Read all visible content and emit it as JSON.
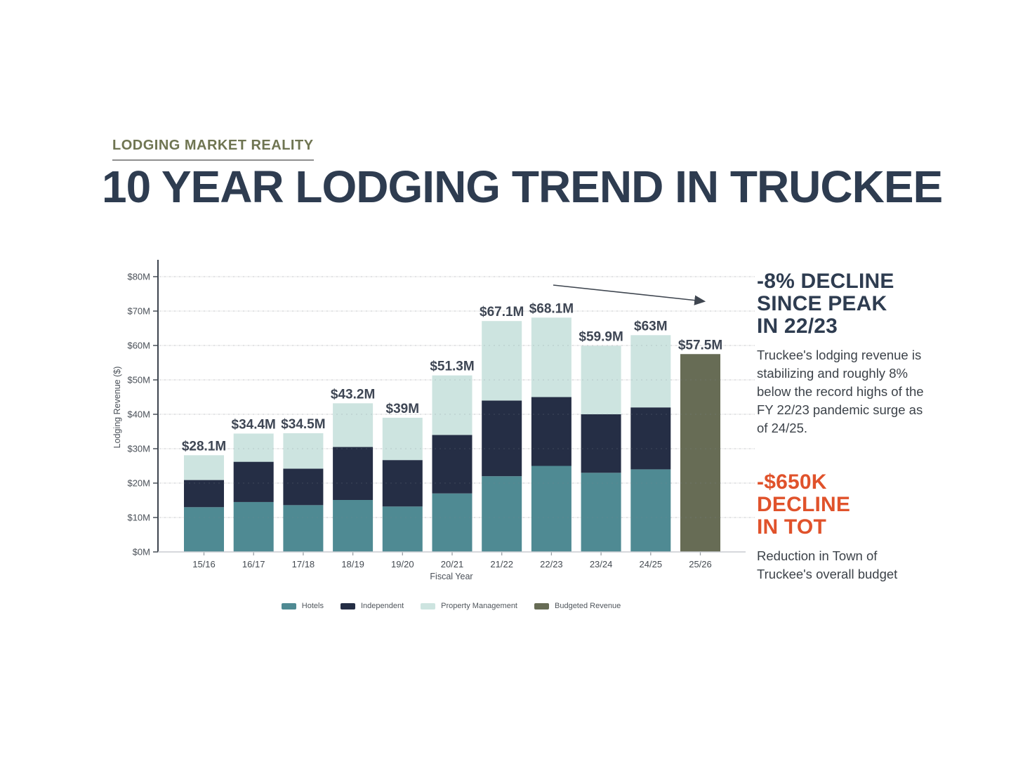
{
  "page": {
    "background": "#ffffff"
  },
  "kicker": {
    "label": "LODGING MARKET REALITY",
    "color": "#6F7552"
  },
  "title": {
    "text": "10 YEAR LODGING TREND IN TRUCKEE",
    "color": "#2E3C50"
  },
  "chart_data": {
    "type": "bar",
    "stacked": true,
    "title": "",
    "xlabel": "Fiscal Year",
    "ylabel": "Lodging Revenue ($)",
    "ylim": [
      0,
      80
    ],
    "grid": "faint horizontal lines every $10M, dashed overlay visible across bars",
    "legend_position": "bottom",
    "categories": [
      "15/16",
      "16/17",
      "17/18",
      "18/19",
      "19/20",
      "20/21",
      "21/22",
      "22/23",
      "23/24",
      "24/25",
      "25/26"
    ],
    "series": [
      {
        "name": "Hotels",
        "color": "#4F8A93",
        "values": [
          13.0,
          14.5,
          13.6,
          15.1,
          13.2,
          17.0,
          22.0,
          25.0,
          23.0,
          24.0,
          0
        ]
      },
      {
        "name": "Independent",
        "color": "#252E45",
        "values": [
          7.9,
          11.7,
          10.6,
          15.4,
          13.5,
          17.0,
          22.0,
          20.0,
          17.0,
          18.0,
          0
        ]
      },
      {
        "name": "Property Management",
        "color": "#CDE4E0",
        "values": [
          7.2,
          8.2,
          10.3,
          12.7,
          12.3,
          17.3,
          23.1,
          23.1,
          19.9,
          21.0,
          0
        ]
      },
      {
        "name": "Budgeted Revenue",
        "color": "#676C55",
        "values": [
          0,
          0,
          0,
          0,
          0,
          0,
          0,
          0,
          0,
          0,
          57.5
        ]
      }
    ],
    "totals": [
      28.1,
      34.4,
      34.5,
      43.2,
      39.0,
      51.3,
      67.1,
      68.1,
      59.9,
      63.0,
      57.5
    ],
    "total_labels": [
      "$28.1M",
      "$34.4M",
      "$34.5M",
      "$43.2M",
      "$39M",
      "$51.3M",
      "$67.1M",
      "$68.1M",
      "$59.9M",
      "$63M",
      "$57.5M"
    ],
    "ytick_values": [
      0,
      10,
      20,
      30,
      40,
      50,
      60,
      70,
      80
    ],
    "ytick_labels": [
      "$0M",
      "$10M",
      "$20M",
      "$30M",
      "$40M",
      "$50M",
      "$60M",
      "$70M",
      "$80M"
    ],
    "annotations": {
      "trend_arrow": {
        "description": "downward arrow above bars from 22/23 peak toward 25/26"
      }
    }
  },
  "right_panel": {
    "block1": {
      "heading": "-8% DECLINE\nSINCE PEAK\nIN 22/23",
      "heading_color": "#2E3C50",
      "body": "Truckee's lodging revenue is stabilizing and roughly 8% below the record highs of the FY 22/23 pandemic surge as of 24/25."
    },
    "block2": {
      "heading": "-$650K\nDECLINE\nIN TOT",
      "heading_color": "#E0522B",
      "body": "Reduction in Town of Truckee's overall budget"
    }
  }
}
